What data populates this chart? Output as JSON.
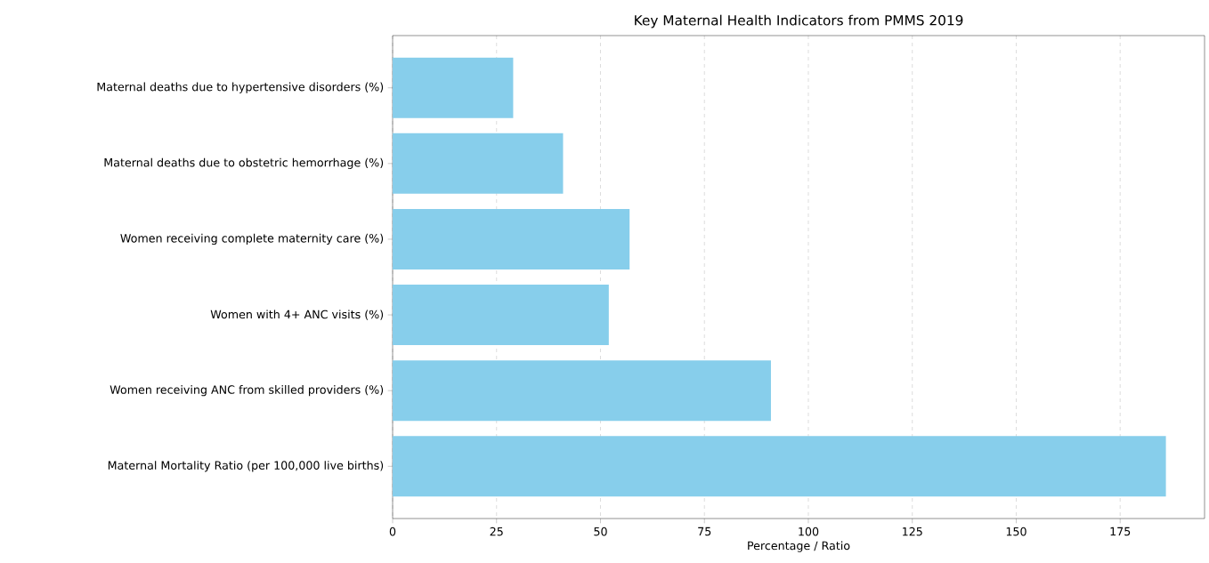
{
  "chart_data": {
    "type": "bar",
    "orientation": "horizontal",
    "title": "Key Maternal Health Indicators from PMMS 2019",
    "xlabel": "Percentage / Ratio",
    "categories": [
      "Maternal deaths due to hypertensive disorders (%)",
      "Maternal deaths due to obstetric hemorrhage (%)",
      "Women receiving complete maternity care (%)",
      "Women with 4+ ANC visits (%)",
      "Women receiving ANC from skilled providers (%)",
      "Maternal Mortality Ratio (per 100,000 live births)"
    ],
    "values": [
      29,
      41,
      57,
      52,
      91,
      186
    ],
    "color": "#87ceeb",
    "xlim": [
      0,
      195.3
    ],
    "xticks": [
      0,
      25,
      50,
      75,
      100,
      125,
      150,
      175
    ],
    "grid": "x"
  }
}
